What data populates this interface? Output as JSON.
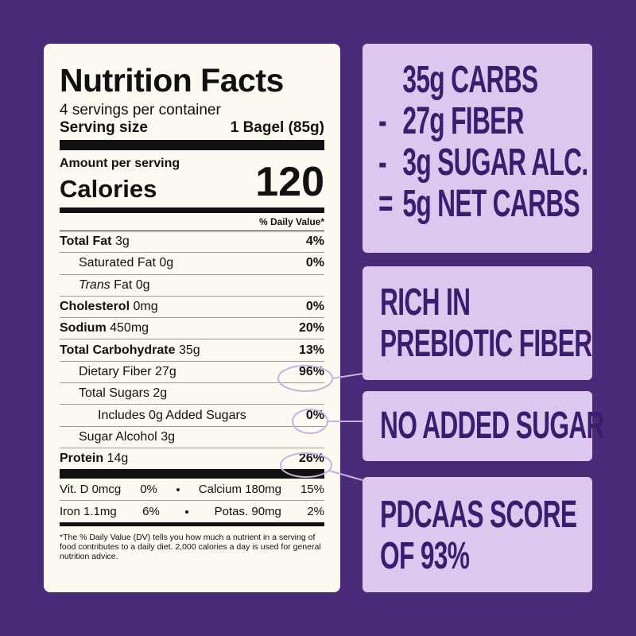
{
  "label": {
    "title": "Nutrition Facts",
    "servings": "4 servings per container",
    "serving_size_label": "Serving size",
    "serving_size": "1 Bagel (85g)",
    "amount_per_serving": "Amount per serving",
    "calories_label": "Calories",
    "calories": "120",
    "dv_header": "% Daily Value*",
    "rows": [
      {
        "name": "Total Fat",
        "amount": "3g",
        "dv": "4%",
        "bold": true,
        "indent": 0
      },
      {
        "name": "Saturated Fat",
        "amount": "0g",
        "dv": "0%",
        "indent": 1
      },
      {
        "name_em": "Trans",
        "name": "Fat",
        "amount": "0g",
        "indent": 1
      },
      {
        "name": "Cholesterol",
        "amount": "0mg",
        "dv": "0%",
        "bold": true,
        "indent": 0
      },
      {
        "name": "Sodium",
        "amount": "450mg",
        "dv": "20%",
        "bold": true,
        "indent": 0
      },
      {
        "name": "Total Carbohydrate",
        "amount": "35g",
        "dv": "13%",
        "bold": true,
        "indent": 0
      },
      {
        "name": "Dietary Fiber",
        "amount": "27g",
        "dv": "96%",
        "indent": 1,
        "circled": true
      },
      {
        "name": "Total Sugars",
        "amount": "2g",
        "indent": 1
      },
      {
        "name": "Includes 0g Added Sugars",
        "dv": "0%",
        "indent": 2,
        "circled": true
      },
      {
        "name": "Sugar Alcohol",
        "amount": "3g",
        "indent": 1
      },
      {
        "name": "Protein",
        "amount": "14g",
        "dv": "26%",
        "bold": true,
        "indent": 0,
        "circled": true
      }
    ],
    "vitamins": [
      [
        "Vit. D 0mcg",
        "0%",
        "Calcium 180mg",
        "15%"
      ],
      [
        "Iron 1.1mg",
        "6%",
        "Potas. 90mg",
        "2%"
      ]
    ],
    "footnote": "*The % Daily Value (DV) tells you how much a nutrient in a serving of food contributes to a daily diet. 2,000 calories a day is used for general nutrition advice."
  },
  "callouts": [
    {
      "lines": [
        {
          "text": "35g CARBS"
        },
        {
          "op": "-",
          "text": "27g FIBER"
        },
        {
          "op": "-",
          "text": "3g SUGAR ALC."
        },
        {
          "op": "=",
          "text": "5g NET CARBS"
        }
      ]
    },
    {
      "lines": [
        {
          "text": "RICH IN"
        },
        {
          "text": "PREBIOTIC FIBER"
        }
      ]
    },
    {
      "lines": [
        {
          "text": "NO ADDED SUGAR"
        }
      ]
    },
    {
      "lines": [
        {
          "text": "PDCAAS SCORE"
        },
        {
          "text": "OF 93%"
        }
      ]
    }
  ]
}
